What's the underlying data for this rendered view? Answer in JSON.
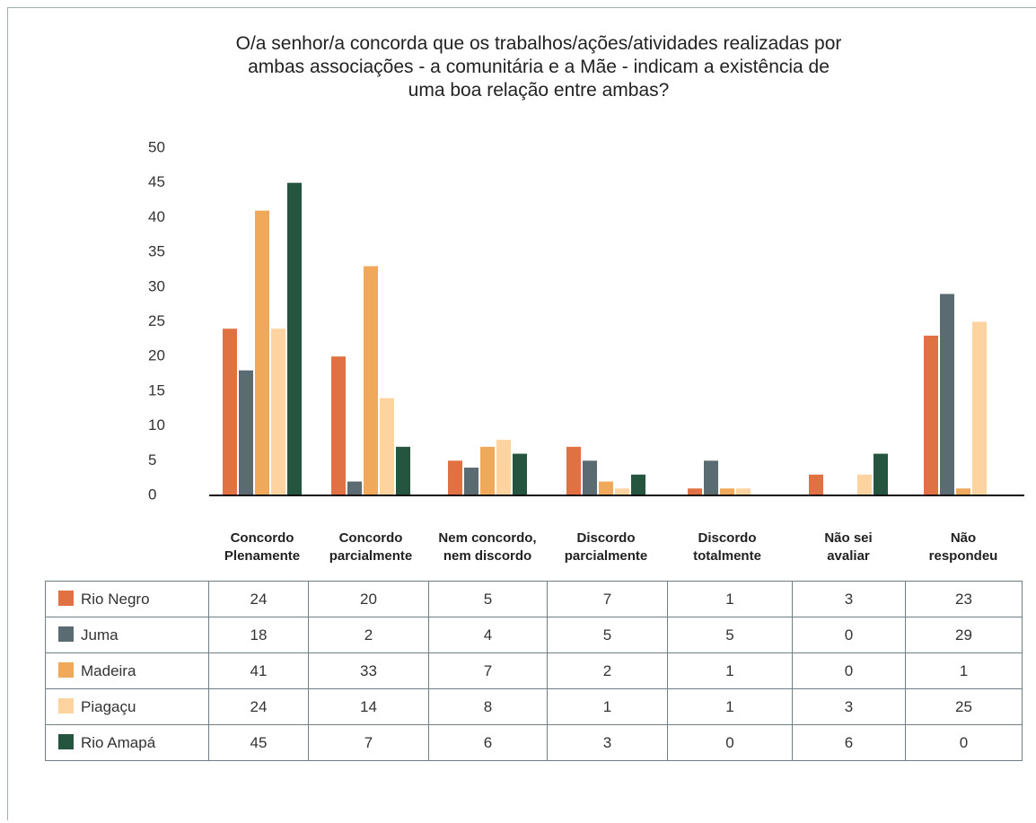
{
  "chart_data": {
    "type": "bar",
    "title": "O/a senhor/a concorda que os trabalhos/ações/atividades realizadas por\nambas associações - a comunitária e a Mãe - indicam a existência de\numa boa relação entre ambas?",
    "categories": [
      "Concordo\nPlenamente",
      "Concordo\nparcialmente",
      "Nem concordo,\nnem discordo",
      "Discordo\nparcialmente",
      "Discordo\ntotalmente",
      "Não sei\navaliar",
      "Não\nrespondeu"
    ],
    "series": [
      {
        "name": "Rio Negro",
        "color": "#e07142",
        "values": [
          24,
          20,
          5,
          7,
          1,
          3,
          23
        ]
      },
      {
        "name": "Juma",
        "color": "#5b6b72",
        "values": [
          18,
          2,
          4,
          5,
          5,
          0,
          29
        ]
      },
      {
        "name": "Madeira",
        "color": "#f0a95a",
        "values": [
          41,
          33,
          7,
          2,
          1,
          0,
          1
        ]
      },
      {
        "name": "Piagaçu",
        "color": "#fdd49f",
        "values": [
          24,
          14,
          8,
          1,
          1,
          3,
          25
        ]
      },
      {
        "name": "Rio Amapá",
        "color": "#25553f",
        "values": [
          45,
          7,
          6,
          3,
          0,
          6,
          0
        ]
      }
    ],
    "ylim": [
      0,
      50
    ],
    "yticks": [
      0,
      5,
      10,
      15,
      20,
      25,
      30,
      35,
      40,
      45,
      50
    ],
    "grid": false
  }
}
